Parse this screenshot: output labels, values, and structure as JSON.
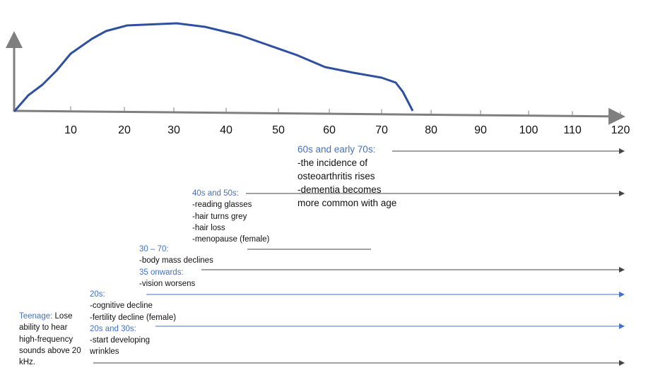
{
  "axis": {
    "ticks": [
      "10",
      "20",
      "30",
      "40",
      "50",
      "60",
      "70",
      "80",
      "90",
      "100",
      "110",
      "120"
    ]
  },
  "colors": {
    "curve": "#2f4f9f",
    "heading": "#4472c4",
    "axis": "#808080"
  },
  "stages": {
    "s60": {
      "heading": "60s and early 70s:",
      "lines": [
        "-the incidence of",
        "osteoarthritis rises",
        "-dementia becomes",
        "more common with age"
      ]
    },
    "s40": {
      "heading": "40s and 50s:",
      "lines": [
        "-reading glasses",
        "-hair turns grey",
        "-hair loss",
        "-menopause (female)"
      ]
    },
    "s30": {
      "heading": "30 – 70:",
      "lines": [
        "-body mass declines"
      ]
    },
    "s35": {
      "heading": "35 onwards:",
      "lines": [
        "-vision worsens"
      ]
    },
    "s20": {
      "heading": "20s:",
      "lines": [
        "-cognitive decline",
        "-fertility decline (female)"
      ]
    },
    "s2030": {
      "heading": "20s and 30s:",
      "lines": [
        "-start developing",
        "wrinkles"
      ]
    },
    "teen": {
      "heading": "Teenage:",
      "first": " Lose",
      "lines": [
        "ability to hear",
        "high-frequency",
        "sounds above 20",
        "kHz."
      ]
    }
  }
}
